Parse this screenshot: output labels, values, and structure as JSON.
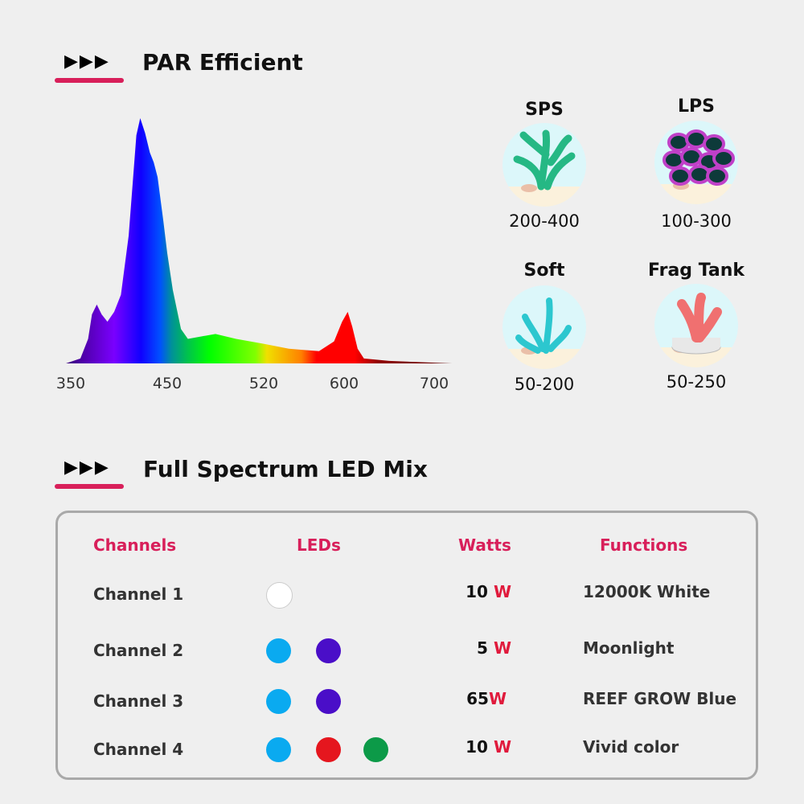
{
  "section1": {
    "title": "PAR Efficient",
    "arrows": "▶▶▶"
  },
  "section2": {
    "title": "Full Spectrum LED Mix",
    "arrows": "▶▶▶"
  },
  "chart_data": {
    "type": "area",
    "xlabel": "",
    "ylabel": "",
    "x_tick_labels": [
      "350",
      "450",
      "520",
      "600",
      "700"
    ],
    "grid": false,
    "y_units": "relative intensity",
    "points": [
      [
        345,
        0
      ],
      [
        360,
        0.02
      ],
      [
        368,
        0.1
      ],
      [
        372,
        0.2
      ],
      [
        377,
        0.24
      ],
      [
        382,
        0.2
      ],
      [
        388,
        0.17
      ],
      [
        395,
        0.21
      ],
      [
        402,
        0.28
      ],
      [
        410,
        0.52
      ],
      [
        418,
        0.93
      ],
      [
        422,
        1.0
      ],
      [
        427,
        0.94
      ],
      [
        432,
        0.86
      ],
      [
        436,
        0.82
      ],
      [
        440,
        0.76
      ],
      [
        446,
        0.58
      ],
      [
        450,
        0.45
      ],
      [
        454,
        0.3
      ],
      [
        460,
        0.14
      ],
      [
        465,
        0.1
      ],
      [
        475,
        0.11
      ],
      [
        485,
        0.12
      ],
      [
        500,
        0.1
      ],
      [
        520,
        0.08
      ],
      [
        545,
        0.06
      ],
      [
        575,
        0.05
      ],
      [
        590,
        0.09
      ],
      [
        598,
        0.17
      ],
      [
        604,
        0.21
      ],
      [
        609,
        0.15
      ],
      [
        615,
        0.06
      ],
      [
        622,
        0.02
      ],
      [
        650,
        0.01
      ],
      [
        720,
        0
      ]
    ],
    "gradient_colors": [
      "#3a0080",
      "#7a00ff",
      "#1000ff",
      "#0050ff",
      "#00909a",
      "#00c050",
      "#00ff00",
      "#80ff00",
      "#f0e000",
      "#ff8000",
      "#ff0000",
      "#ff0000",
      "#900000",
      "#600000"
    ]
  },
  "corals": [
    {
      "name": "SPS",
      "range": "200-400",
      "icon": "sps-coral-icon"
    },
    {
      "name": "LPS",
      "range": "100-300",
      "icon": "lps-coral-icon"
    },
    {
      "name": "Soft",
      "range": "50-200",
      "icon": "soft-coral-icon"
    },
    {
      "name": "Frag Tank",
      "range": "50-250",
      "icon": "frag-tank-coral-icon"
    }
  ],
  "table": {
    "headers": {
      "channels": "Channels",
      "leds": "LEDs",
      "watts": "Watts",
      "functions": "Functions"
    },
    "rows": [
      {
        "channel": "Channel 1",
        "leds": [
          "#ffffff"
        ],
        "watts": "10",
        "unit": "W",
        "function": "12000K White"
      },
      {
        "channel": "Channel 2",
        "leds": [
          "#0aaaf0",
          "#4a0ec8"
        ],
        "watts": "5",
        "unit": "W",
        "function": "Moonlight"
      },
      {
        "channel": "Channel 3",
        "leds": [
          "#0aaaf0",
          "#4a0ec8"
        ],
        "watts": "65",
        "unit": "W",
        "function": "REEF GROW Blue"
      },
      {
        "channel": "Channel 4",
        "leds": [
          "#0aaaf0",
          "#e5161e",
          "#0c9a48"
        ],
        "watts": "10",
        "unit": "W",
        "function": "Vivid color"
      }
    ]
  },
  "colors": {
    "accent": "#d81f5a",
    "watt_unit": "#e01a3c",
    "background": "#efefef"
  }
}
